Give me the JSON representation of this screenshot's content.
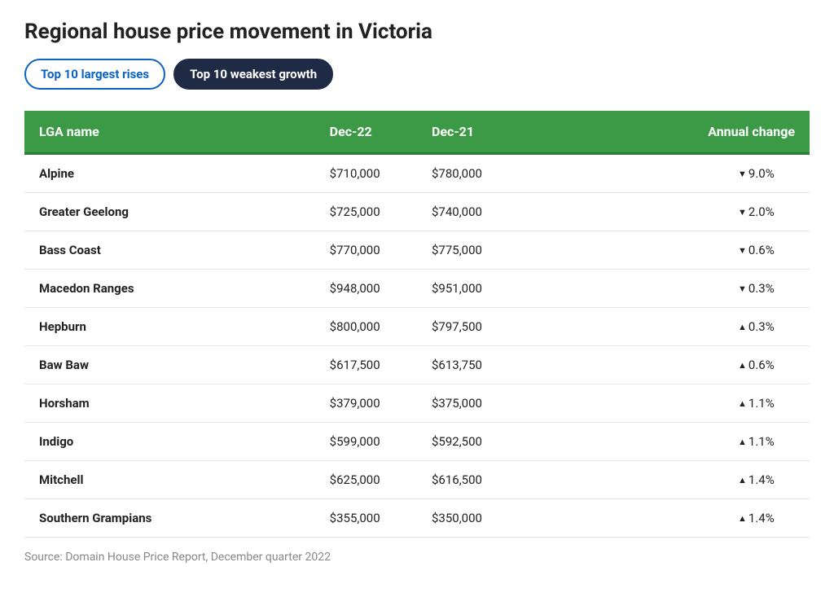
{
  "title": "Regional house price movement in Victoria",
  "tabs": {
    "inactive": "Top 10 largest rises",
    "active": "Top 10 weakest growth"
  },
  "table": {
    "columns": {
      "lga": "LGA name",
      "dec22": "Dec-22",
      "dec21": "Dec-21",
      "change": "Annual change"
    },
    "rows": [
      {
        "lga": "Alpine",
        "dec22": "$710,000",
        "dec21": "$780,000",
        "dir": "down",
        "change": "9.0%"
      },
      {
        "lga": "Greater Geelong",
        "dec22": "$725,000",
        "dec21": "$740,000",
        "dir": "down",
        "change": "2.0%"
      },
      {
        "lga": "Bass Coast",
        "dec22": "$770,000",
        "dec21": "$775,000",
        "dir": "down",
        "change": "0.6%"
      },
      {
        "lga": "Macedon Ranges",
        "dec22": "$948,000",
        "dec21": "$951,000",
        "dir": "down",
        "change": "0.3%"
      },
      {
        "lga": "Hepburn",
        "dec22": "$800,000",
        "dec21": "$797,500",
        "dir": "up",
        "change": "0.3%"
      },
      {
        "lga": "Baw Baw",
        "dec22": "$617,500",
        "dec21": "$613,750",
        "dir": "up",
        "change": "0.6%"
      },
      {
        "lga": "Horsham",
        "dec22": "$379,000",
        "dec21": "$375,000",
        "dir": "up",
        "change": "1.1%"
      },
      {
        "lga": "Indigo",
        "dec22": "$599,000",
        "dec21": "$592,500",
        "dir": "up",
        "change": "1.1%"
      },
      {
        "lga": "Mitchell",
        "dec22": "$625,000",
        "dec21": "$616,500",
        "dir": "up",
        "change": "1.4%"
      },
      {
        "lga": "Southern Grampians",
        "dec22": "$355,000",
        "dec21": "$350,000",
        "dir": "up",
        "change": "1.4%"
      }
    ]
  },
  "arrows": {
    "up": "▲",
    "down": "▼"
  },
  "source": "Source: Domain House Price Report, December quarter 2022",
  "colors": {
    "header_bg": "#3c9a46",
    "header_border": "#2d7a36",
    "tab_inactive_border": "#0b63c4",
    "tab_active_bg": "#1f2a44",
    "row_border": "#e6e6e6",
    "source_text": "#888888"
  }
}
